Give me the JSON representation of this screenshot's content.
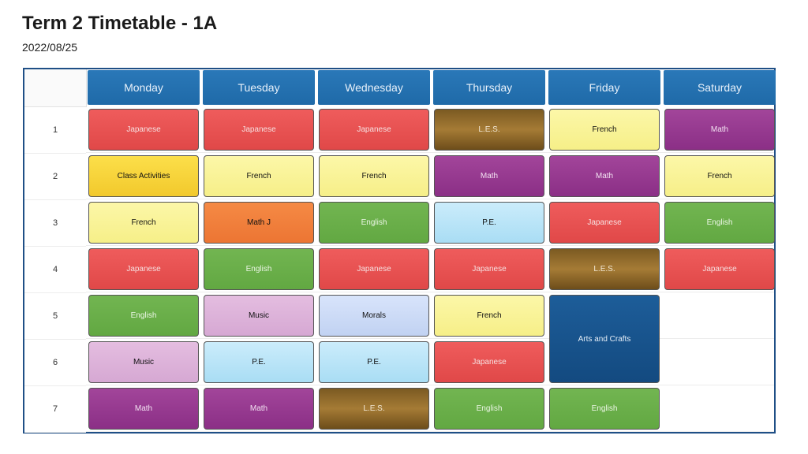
{
  "title": "Term 2 Timetable - 1A",
  "date": "2022/08/25",
  "days": [
    "Monday",
    "Tuesday",
    "Wednesday",
    "Thursday",
    "Friday",
    "Saturday"
  ],
  "periods": [
    "1",
    "2",
    "3",
    "4",
    "5",
    "6",
    "7"
  ],
  "colors": {
    "header": "#1f6aa8",
    "red": "#e04848",
    "brown": "#8a6428",
    "light_yellow": "#f6ef88",
    "yellow": "#f2c92c",
    "purple": "#8b2f86",
    "orange": "#ec7533",
    "green": "#62a842",
    "light_blue": "#a9ddf4",
    "pink": "#d6a8d3",
    "periwinkle": "#c1d2f2",
    "navy": "#134a80"
  },
  "schedule": [
    {
      "day": "Monday",
      "period": 1,
      "span": 1,
      "subject": "Japanese",
      "color": "red"
    },
    {
      "day": "Monday",
      "period": 2,
      "span": 1,
      "subject": "Class Activities",
      "color": "yellow"
    },
    {
      "day": "Monday",
      "period": 3,
      "span": 1,
      "subject": "French",
      "color": "light_yellow"
    },
    {
      "day": "Monday",
      "period": 4,
      "span": 1,
      "subject": "Japanese",
      "color": "red"
    },
    {
      "day": "Monday",
      "period": 5,
      "span": 1,
      "subject": "English",
      "color": "green"
    },
    {
      "day": "Monday",
      "period": 6,
      "span": 1,
      "subject": "Music",
      "color": "pink"
    },
    {
      "day": "Monday",
      "period": 7,
      "span": 1,
      "subject": "Math",
      "color": "purple"
    },
    {
      "day": "Tuesday",
      "period": 1,
      "span": 1,
      "subject": "Japanese",
      "color": "red"
    },
    {
      "day": "Tuesday",
      "period": 2,
      "span": 1,
      "subject": "French",
      "color": "light_yellow"
    },
    {
      "day": "Tuesday",
      "period": 3,
      "span": 1,
      "subject": "Math J",
      "color": "orange"
    },
    {
      "day": "Tuesday",
      "period": 4,
      "span": 1,
      "subject": "English",
      "color": "green"
    },
    {
      "day": "Tuesday",
      "period": 5,
      "span": 1,
      "subject": "Music",
      "color": "pink"
    },
    {
      "day": "Tuesday",
      "period": 6,
      "span": 1,
      "subject": "P.E.",
      "color": "light_blue"
    },
    {
      "day": "Tuesday",
      "period": 7,
      "span": 1,
      "subject": "Math",
      "color": "purple"
    },
    {
      "day": "Wednesday",
      "period": 1,
      "span": 1,
      "subject": "Japanese",
      "color": "red"
    },
    {
      "day": "Wednesday",
      "period": 2,
      "span": 1,
      "subject": "French",
      "color": "light_yellow"
    },
    {
      "day": "Wednesday",
      "period": 3,
      "span": 1,
      "subject": "English",
      "color": "green"
    },
    {
      "day": "Wednesday",
      "period": 4,
      "span": 1,
      "subject": "Japanese",
      "color": "red"
    },
    {
      "day": "Wednesday",
      "period": 5,
      "span": 1,
      "subject": "Morals",
      "color": "periwinkle"
    },
    {
      "day": "Wednesday",
      "period": 6,
      "span": 1,
      "subject": "P.E.",
      "color": "light_blue"
    },
    {
      "day": "Wednesday",
      "period": 7,
      "span": 1,
      "subject": "L.E.S.",
      "color": "brown"
    },
    {
      "day": "Thursday",
      "period": 1,
      "span": 1,
      "subject": "L.E.S.",
      "color": "brown"
    },
    {
      "day": "Thursday",
      "period": 2,
      "span": 1,
      "subject": "Math",
      "color": "purple"
    },
    {
      "day": "Thursday",
      "period": 3,
      "span": 1,
      "subject": "P.E.",
      "color": "light_blue"
    },
    {
      "day": "Thursday",
      "period": 4,
      "span": 1,
      "subject": "Japanese",
      "color": "red"
    },
    {
      "day": "Thursday",
      "period": 5,
      "span": 1,
      "subject": "French",
      "color": "light_yellow"
    },
    {
      "day": "Thursday",
      "period": 6,
      "span": 1,
      "subject": "Japanese",
      "color": "red"
    },
    {
      "day": "Thursday",
      "period": 7,
      "span": 1,
      "subject": "English",
      "color": "green"
    },
    {
      "day": "Friday",
      "period": 1,
      "span": 1,
      "subject": "French",
      "color": "light_yellow"
    },
    {
      "day": "Friday",
      "period": 2,
      "span": 1,
      "subject": "Math",
      "color": "purple"
    },
    {
      "day": "Friday",
      "period": 3,
      "span": 1,
      "subject": "Japanese",
      "color": "red"
    },
    {
      "day": "Friday",
      "period": 4,
      "span": 1,
      "subject": "L.E.S.",
      "color": "brown"
    },
    {
      "day": "Friday",
      "period": 5,
      "span": 2,
      "subject": "Arts and Crafts",
      "color": "navy"
    },
    {
      "day": "Friday",
      "period": 7,
      "span": 1,
      "subject": "English",
      "color": "green"
    },
    {
      "day": "Saturday",
      "period": 1,
      "span": 1,
      "subject": "Math",
      "color": "purple"
    },
    {
      "day": "Saturday",
      "period": 2,
      "span": 1,
      "subject": "French",
      "color": "light_yellow"
    },
    {
      "day": "Saturday",
      "period": 3,
      "span": 1,
      "subject": "English",
      "color": "green"
    },
    {
      "day": "Saturday",
      "period": 4,
      "span": 1,
      "subject": "Japanese",
      "color": "red"
    }
  ]
}
